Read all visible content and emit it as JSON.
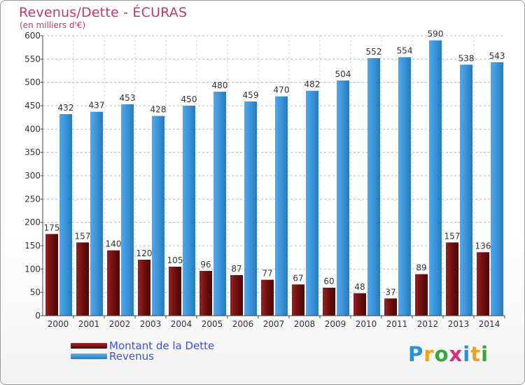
{
  "title": "Revenus/Dette - ÉCURAS",
  "subtitle": "(en milliers d'€)",
  "logo": {
    "text": "Proxiti"
  },
  "colors": {
    "title": "#c2386a",
    "dette": "#7a1212",
    "revenus": "#3d96db",
    "legend_text": "#3b50d8"
  },
  "legend": {
    "items": [
      {
        "label": "Montant de la Dette",
        "color": "#7a1212"
      },
      {
        "label": "Revenus",
        "color": "#3d96db"
      }
    ],
    "placement": "bottom-left"
  },
  "chart_data": {
    "type": "bar",
    "title": "Revenus/Dette - ÉCURAS",
    "subtitle": "(en milliers d'€)",
    "categories": [
      "2000",
      "2001",
      "2002",
      "2003",
      "2004",
      "2005",
      "2006",
      "2007",
      "2008",
      "2009",
      "2010",
      "2011",
      "2012",
      "2013",
      "2014"
    ],
    "series": [
      {
        "name": "Montant de la Dette",
        "color": "#7a1212",
        "values": [
          175,
          157,
          140,
          120,
          105,
          96,
          87,
          77,
          67,
          60,
          48,
          37,
          89,
          157,
          136
        ]
      },
      {
        "name": "Revenus",
        "color": "#3d96db",
        "values": [
          432,
          437,
          453,
          428,
          450,
          480,
          459,
          470,
          482,
          504,
          552,
          554,
          590,
          538,
          543
        ]
      }
    ],
    "ylim": [
      0,
      600
    ],
    "yticks": [
      0,
      50,
      100,
      150,
      200,
      250,
      300,
      350,
      400,
      450,
      500,
      550,
      600
    ],
    "grid": true,
    "legend": "bottom-left"
  }
}
